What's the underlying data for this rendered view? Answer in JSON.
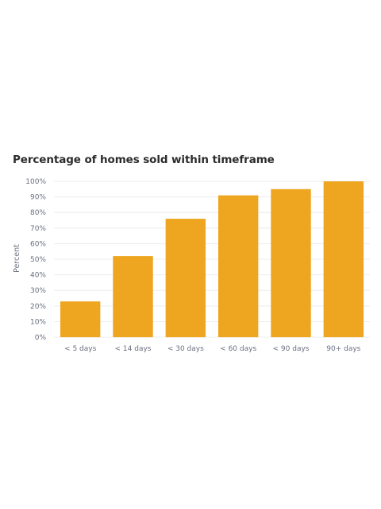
{
  "chart_data": {
    "type": "bar",
    "title": "Percentage of homes sold within timeframe",
    "xlabel": "",
    "ylabel": "Percent",
    "categories": [
      "< 5 days",
      "< 14 days",
      "< 30 days",
      "< 60 days",
      "< 90 days",
      "90+ days"
    ],
    "values": [
      23,
      52,
      76,
      91,
      95,
      100
    ],
    "ylim": [
      0,
      100
    ],
    "yticks": [
      "0%",
      "10%",
      "20%",
      "30%",
      "40%",
      "50%",
      "60%",
      "70%",
      "80%",
      "90%",
      "100%"
    ],
    "grid": true,
    "legend": "none",
    "bar_color": "#eea620",
    "grid_color": "#e6e6ea",
    "label_color": "#6b6f80"
  }
}
